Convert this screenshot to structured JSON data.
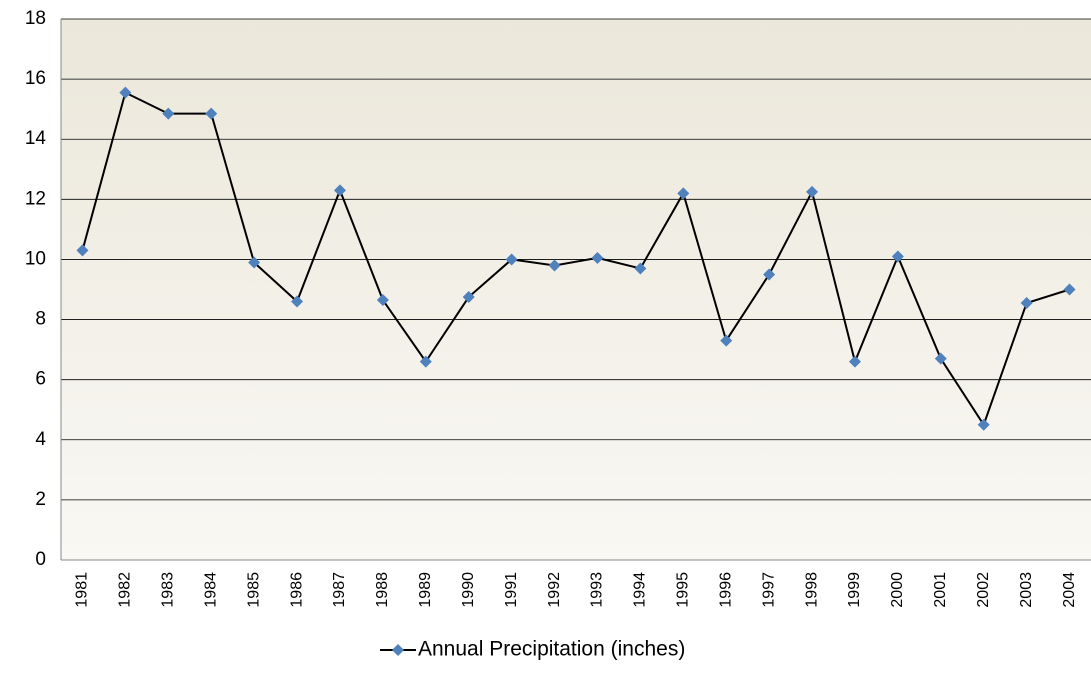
{
  "chart_data": {
    "type": "line",
    "categories": [
      "1981",
      "1982",
      "1983",
      "1984",
      "1985",
      "1986",
      "1987",
      "1988",
      "1989",
      "1990",
      "1991",
      "1992",
      "1993",
      "1994",
      "1995",
      "1996",
      "1997",
      "1998",
      "1999",
      "2000",
      "2001",
      "2002",
      "2003",
      "2004"
    ],
    "series": [
      {
        "name": "Annual Precipitation (inches)",
        "color": "#4f81bd",
        "line_color": "#000000",
        "values": [
          10.3,
          15.55,
          14.85,
          14.85,
          9.9,
          8.6,
          12.3,
          8.65,
          6.6,
          8.75,
          10.0,
          9.8,
          10.05,
          9.7,
          12.2,
          7.3,
          9.5,
          12.25,
          6.6,
          10.1,
          6.7,
          4.5,
          8.55,
          9.0
        ]
      }
    ],
    "ylim": [
      0,
      18
    ],
    "yticks": [
      0,
      2,
      4,
      6,
      8,
      10,
      12,
      14,
      16,
      18
    ],
    "grid": true,
    "legend": "bottom"
  }
}
